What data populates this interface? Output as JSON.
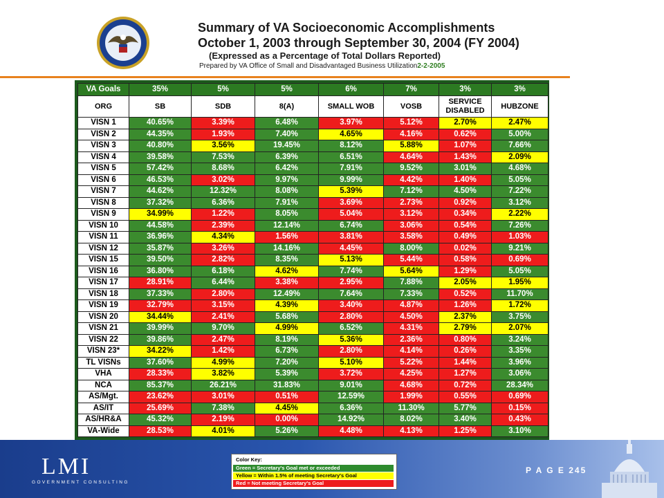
{
  "header": {
    "title": "Summary of VA Socioeconomic Accomplishments",
    "period": "October 1, 2003 through September 30, 2004   (FY 2004)",
    "subtitle": "(Expressed as a Percentage of Total Dollars Reported)",
    "prepared_by": "Prepared by VA Office of Small and Disadvantaged Business Utilization",
    "prepared_date": "2-2-2005"
  },
  "table": {
    "goals": [
      "VA Goals",
      "35%",
      "5%",
      "5%",
      "6%",
      "7%",
      "3%",
      "3%"
    ],
    "columns": [
      "ORG",
      "SB",
      "SDB",
      "8(A)",
      "SMALL WOB",
      "VOSB",
      "SERVICE DISABLED",
      "HUBZONE"
    ],
    "rows": [
      {
        "org": "VISN 1",
        "v": [
          "40.65%",
          "3.39%",
          "6.48%",
          "3.97%",
          "5.12%",
          "2.70%",
          "2.47%"
        ],
        "c": [
          "g",
          "r",
          "g",
          "r",
          "r",
          "y",
          "y"
        ]
      },
      {
        "org": "VISN 2",
        "v": [
          "44.35%",
          "1.93%",
          "7.40%",
          "4.65%",
          "4.16%",
          "0.62%",
          "5.00%"
        ],
        "c": [
          "g",
          "r",
          "g",
          "y",
          "r",
          "r",
          "g"
        ]
      },
      {
        "org": "VISN 3",
        "v": [
          "40.80%",
          "3.56%",
          "19.45%",
          "8.12%",
          "5.88%",
          "1.07%",
          "7.66%"
        ],
        "c": [
          "g",
          "y",
          "g",
          "g",
          "y",
          "r",
          "g"
        ]
      },
      {
        "org": "VISN 4",
        "v": [
          "39.58%",
          "7.53%",
          "6.39%",
          "6.51%",
          "4.64%",
          "1.43%",
          "2.09%"
        ],
        "c": [
          "g",
          "g",
          "g",
          "g",
          "r",
          "r",
          "y"
        ]
      },
      {
        "org": "VISN 5",
        "v": [
          "57.42%",
          "8.68%",
          "6.42%",
          "7.91%",
          "9.52%",
          "3.01%",
          "4.68%"
        ],
        "c": [
          "g",
          "g",
          "g",
          "g",
          "g",
          "g",
          "g"
        ]
      },
      {
        "org": "VISN 6",
        "v": [
          "46.53%",
          "3.02%",
          "9.97%",
          "9.99%",
          "4.42%",
          "1.40%",
          "5.05%"
        ],
        "c": [
          "g",
          "r",
          "g",
          "g",
          "r",
          "r",
          "g"
        ]
      },
      {
        "org": "VISN 7",
        "v": [
          "44.62%",
          "12.32%",
          "8.08%",
          "5.39%",
          "7.12%",
          "4.50%",
          "7.22%"
        ],
        "c": [
          "g",
          "g",
          "g",
          "y",
          "g",
          "g",
          "g"
        ]
      },
      {
        "org": "VISN 8",
        "v": [
          "37.32%",
          "6.36%",
          "7.91%",
          "3.69%",
          "2.73%",
          "0.92%",
          "3.12%"
        ],
        "c": [
          "g",
          "g",
          "g",
          "r",
          "r",
          "r",
          "g"
        ]
      },
      {
        "org": "VISN 9",
        "v": [
          "34.99%",
          "1.22%",
          "8.05%",
          "5.04%",
          "3.12%",
          "0.34%",
          "2.22%"
        ],
        "c": [
          "y",
          "r",
          "g",
          "r",
          "r",
          "r",
          "y"
        ]
      },
      {
        "org": "VISN 10",
        "v": [
          "44.58%",
          "2.39%",
          "12.14%",
          "6.74%",
          "3.06%",
          "0.54%",
          "7.26%"
        ],
        "c": [
          "g",
          "r",
          "g",
          "g",
          "r",
          "r",
          "g"
        ]
      },
      {
        "org": "VISN 11",
        "v": [
          "36.96%",
          "4.34%",
          "1.56%",
          "3.81%",
          "3.58%",
          "0.49%",
          "1.03%"
        ],
        "c": [
          "g",
          "y",
          "r",
          "r",
          "r",
          "r",
          "r"
        ]
      },
      {
        "org": "VISN 12",
        "v": [
          "35.87%",
          "3.26%",
          "14.16%",
          "4.45%",
          "8.00%",
          "0.02%",
          "9.21%"
        ],
        "c": [
          "g",
          "r",
          "g",
          "r",
          "g",
          "r",
          "g"
        ]
      },
      {
        "org": "VISN 15",
        "v": [
          "39.50%",
          "2.82%",
          "8.35%",
          "5.13%",
          "5.44%",
          "0.58%",
          "0.69%"
        ],
        "c": [
          "g",
          "r",
          "g",
          "y",
          "r",
          "r",
          "r"
        ]
      },
      {
        "org": "VISN 16",
        "v": [
          "36.80%",
          "6.18%",
          "4.62%",
          "7.74%",
          "5.64%",
          "1.29%",
          "5.05%"
        ],
        "c": [
          "g",
          "g",
          "y",
          "g",
          "y",
          "r",
          "g"
        ]
      },
      {
        "org": "VISN 17",
        "v": [
          "28.91%",
          "6.44%",
          "3.38%",
          "2.95%",
          "7.88%",
          "2.05%",
          "1.95%"
        ],
        "c": [
          "r",
          "g",
          "r",
          "r",
          "g",
          "y",
          "y"
        ]
      },
      {
        "org": "VISN 18",
        "v": [
          "37.33%",
          "2.80%",
          "12.49%",
          "7.64%",
          "7.33%",
          "0.52%",
          "11.70%"
        ],
        "c": [
          "g",
          "r",
          "g",
          "g",
          "g",
          "r",
          "g"
        ]
      },
      {
        "org": "VISN 19",
        "v": [
          "32.79%",
          "3.15%",
          "4.39%",
          "3.40%",
          "4.87%",
          "1.26%",
          "1.72%"
        ],
        "c": [
          "r",
          "r",
          "y",
          "r",
          "r",
          "r",
          "y"
        ]
      },
      {
        "org": "VISN 20",
        "v": [
          "34.44%",
          "2.41%",
          "5.68%",
          "2.80%",
          "4.50%",
          "2.37%",
          "3.75%"
        ],
        "c": [
          "y",
          "r",
          "g",
          "r",
          "r",
          "y",
          "g"
        ]
      },
      {
        "org": "VISN 21",
        "v": [
          "39.99%",
          "9.70%",
          "4.99%",
          "6.52%",
          "4.31%",
          "2.79%",
          "2.07%"
        ],
        "c": [
          "g",
          "g",
          "y",
          "g",
          "r",
          "y",
          "y"
        ]
      },
      {
        "org": "VISN 22",
        "v": [
          "39.86%",
          "2.47%",
          "8.19%",
          "5.36%",
          "2.36%",
          "0.80%",
          "3.24%"
        ],
        "c": [
          "g",
          "r",
          "g",
          "y",
          "r",
          "r",
          "g"
        ]
      },
      {
        "org": "VISN 23*",
        "v": [
          "34.22%",
          "1.42%",
          "6.73%",
          "2.80%",
          "4.14%",
          "0.26%",
          "3.35%"
        ],
        "c": [
          "y",
          "r",
          "g",
          "r",
          "r",
          "r",
          "g"
        ]
      },
      {
        "org": "TL VISNs",
        "v": [
          "37.60%",
          "4.99%",
          "7.20%",
          "5.10%",
          "5.22%",
          "1.44%",
          "3.96%"
        ],
        "c": [
          "g",
          "y",
          "g",
          "y",
          "r",
          "r",
          "g"
        ]
      },
      {
        "org": "VHA",
        "v": [
          "28.33%",
          "3.82%",
          "5.39%",
          "3.72%",
          "4.25%",
          "1.27%",
          "3.06%"
        ],
        "c": [
          "r",
          "y",
          "g",
          "r",
          "r",
          "r",
          "g"
        ]
      },
      {
        "org": "NCA",
        "v": [
          "85.37%",
          "26.21%",
          "31.83%",
          "9.01%",
          "4.68%",
          "0.72%",
          "28.34%"
        ],
        "c": [
          "g",
          "g",
          "g",
          "g",
          "r",
          "r",
          "g"
        ]
      },
      {
        "org": "AS/Mgt.",
        "v": [
          "23.62%",
          "3.01%",
          "0.51%",
          "12.59%",
          "1.99%",
          "0.55%",
          "0.69%"
        ],
        "c": [
          "r",
          "r",
          "r",
          "g",
          "r",
          "r",
          "r"
        ]
      },
      {
        "org": "AS/IT",
        "v": [
          "25.69%",
          "7.38%",
          "4.45%",
          "6.36%",
          "11.30%",
          "5.77%",
          "0.15%"
        ],
        "c": [
          "r",
          "g",
          "y",
          "g",
          "g",
          "g",
          "r"
        ]
      },
      {
        "org": "AS/HR&A",
        "v": [
          "45.32%",
          "2.19%",
          "0.00%",
          "14.92%",
          "8.02%",
          "3.40%",
          "0.43%"
        ],
        "c": [
          "g",
          "r",
          "r",
          "g",
          "g",
          "g",
          "r"
        ]
      },
      {
        "org": "VA-Wide",
        "v": [
          "28.53%",
          "4.01%",
          "5.26%",
          "4.48%",
          "4.13%",
          "1.25%",
          "3.10%"
        ],
        "c": [
          "r",
          "y",
          "g",
          "r",
          "r",
          "r",
          "g"
        ]
      }
    ]
  },
  "color_key": {
    "title": "Color Key:",
    "green": "Green = Secretary's Goal met or exceeded",
    "yellow": "Yellow = Within 1.5% of meeting Secretary's Goal",
    "red": "Red = Not meeting Secretary's Goal"
  },
  "footer": {
    "logo": "LMI",
    "logo_sub": "GOVERNMENT CONSULTING",
    "page_label": "P A G E",
    "page_number": "245"
  },
  "colors": {
    "green": "#3b8b2e",
    "yellow": "#ffff00",
    "red": "#ee1c1c",
    "accent_orange": "#e8821e"
  }
}
